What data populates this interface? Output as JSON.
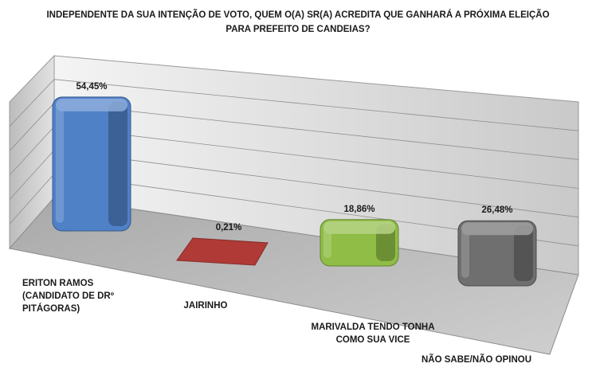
{
  "chart_data": {
    "type": "bar",
    "title_lines": [
      "INDEPENDENTE DA SUA INTENÇÃO DE VOTO, QUEM O(A) SR(A) ACREDITA QUE GANHARÁ A PRÓXIMA ELEIÇÃO",
      "PARA PREFEITO DE CANDEIAS?"
    ],
    "categories": [
      [
        "ERITON RAMOS",
        "(CANDIDATO DE DRº",
        "PITÁGORAS)"
      ],
      [
        "JAIRINHO"
      ],
      [
        "MARIVALDA TENDO TONHA",
        "COMO SUA VICE"
      ],
      [
        "NÃO SABE/NÃO OPINOU"
      ]
    ],
    "values": [
      54.45,
      0.21,
      18.86,
      26.48
    ],
    "value_labels": [
      "54,45%",
      "0,21%",
      "18,86%",
      "26,48%"
    ],
    "bar_colors": [
      "#4f81c7",
      "#b03a36",
      "#8fbd45",
      "#6f6f6f"
    ],
    "ylim": [
      0,
      60
    ],
    "grid": true,
    "legend": "none",
    "style": "3d-perspective"
  }
}
